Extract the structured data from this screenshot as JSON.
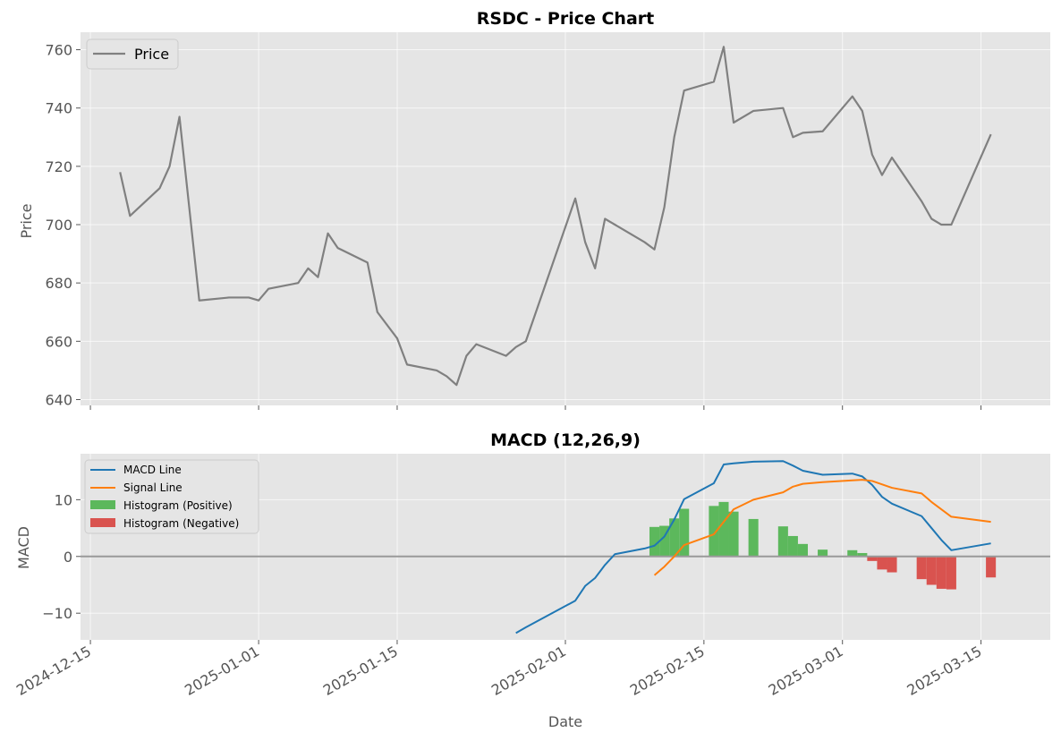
{
  "chart_data": [
    {
      "type": "line",
      "title": "RSDC - Price Chart",
      "xlabel": "",
      "ylabel": "Price",
      "ylim": [
        638,
        766
      ],
      "yticks": [
        640,
        660,
        680,
        700,
        720,
        740,
        760
      ],
      "grid": true,
      "legend_position": "top-left",
      "series": [
        {
          "name": "Price",
          "color": "#808080",
          "points": [
            [
              "2024-12-18",
              718
            ],
            [
              "2024-12-19",
              703
            ],
            [
              "2024-12-22",
              712.5
            ],
            [
              "2024-12-23",
              720
            ],
            [
              "2024-12-24",
              737
            ],
            [
              "2024-12-26",
              674
            ],
            [
              "2024-12-29",
              675
            ],
            [
              "2024-12-31",
              675
            ],
            [
              "2025-01-01",
              674
            ],
            [
              "2025-01-02",
              678
            ],
            [
              "2025-01-05",
              680
            ],
            [
              "2025-01-06",
              685
            ],
            [
              "2025-01-07",
              682
            ],
            [
              "2025-01-08",
              697
            ],
            [
              "2025-01-09",
              692
            ],
            [
              "2025-01-12",
              687
            ],
            [
              "2025-01-13",
              670
            ],
            [
              "2025-01-15",
              661
            ],
            [
              "2025-01-16",
              652
            ],
            [
              "2025-01-19",
              650
            ],
            [
              "2025-01-20",
              648
            ],
            [
              "2025-01-21",
              645
            ],
            [
              "2025-01-22",
              655
            ],
            [
              "2025-01-23",
              659
            ],
            [
              "2025-01-26",
              655
            ],
            [
              "2025-01-27",
              658
            ],
            [
              "2025-01-28",
              660
            ],
            [
              "2025-02-02",
              709
            ],
            [
              "2025-02-03",
              694
            ],
            [
              "2025-02-04",
              685
            ],
            [
              "2025-02-05",
              702
            ],
            [
              "2025-02-09",
              694
            ],
            [
              "2025-02-10",
              691.5
            ],
            [
              "2025-02-11",
              706
            ],
            [
              "2025-02-12",
              730
            ],
            [
              "2025-02-13",
              746
            ],
            [
              "2025-02-16",
              749
            ],
            [
              "2025-02-17",
              761
            ],
            [
              "2025-02-18",
              735
            ],
            [
              "2025-02-20",
              739
            ],
            [
              "2025-02-23",
              740
            ],
            [
              "2025-02-24",
              730
            ],
            [
              "2025-02-25",
              731.5
            ],
            [
              "2025-02-27",
              732
            ],
            [
              "2025-03-02",
              744
            ],
            [
              "2025-03-03",
              739
            ],
            [
              "2025-03-04",
              724
            ],
            [
              "2025-03-05",
              717
            ],
            [
              "2025-03-06",
              723
            ],
            [
              "2025-03-09",
              708
            ],
            [
              "2025-03-10",
              702
            ],
            [
              "2025-03-11",
              700
            ],
            [
              "2025-03-12",
              700
            ],
            [
              "2025-03-16",
              731
            ]
          ]
        }
      ]
    },
    {
      "type": "line",
      "title": "MACD (12,26,9)",
      "xlabel": "Date",
      "ylabel": "MACD",
      "ylim": [
        -14.7,
        18.1
      ],
      "yticks": [
        -10,
        0,
        10
      ],
      "ytick_labels": [
        "−10",
        "0",
        "10"
      ],
      "zero_line": true,
      "grid": true,
      "legend_position": "top-left",
      "xlim": [
        "2024-12-14",
        "2025-03-22"
      ],
      "xticks": [
        "2024-12-15",
        "2025-01-01",
        "2025-01-15",
        "2025-02-01",
        "2025-02-15",
        "2025-03-01",
        "2025-03-15"
      ],
      "series": [
        {
          "name": "MACD Line",
          "color": "#1f77b4",
          "points": [
            [
              "2025-01-27",
              -13.5
            ],
            [
              "2025-01-28",
              -12.5
            ],
            [
              "2025-02-02",
              -7.8
            ],
            [
              "2025-02-03",
              -5.2
            ],
            [
              "2025-02-04",
              -3.8
            ],
            [
              "2025-02-05",
              -1.5
            ],
            [
              "2025-02-06",
              0.4
            ],
            [
              "2025-02-09",
              1.4
            ],
            [
              "2025-02-10",
              1.9
            ],
            [
              "2025-02-11",
              3.5
            ],
            [
              "2025-02-12",
              6.5
            ],
            [
              "2025-02-13",
              10.1
            ],
            [
              "2025-02-16",
              12.9
            ],
            [
              "2025-02-17",
              16.2
            ],
            [
              "2025-02-18",
              16.4
            ],
            [
              "2025-02-20",
              16.7
            ],
            [
              "2025-02-23",
              16.8
            ],
            [
              "2025-02-24",
              16.0
            ],
            [
              "2025-02-25",
              15.1
            ],
            [
              "2025-02-27",
              14.4
            ],
            [
              "2025-03-02",
              14.6
            ],
            [
              "2025-03-03",
              14.1
            ],
            [
              "2025-03-04",
              12.6
            ],
            [
              "2025-03-05",
              10.5
            ],
            [
              "2025-03-06",
              9.3
            ],
            [
              "2025-03-09",
              7.1
            ],
            [
              "2025-03-10",
              5.0
            ],
            [
              "2025-03-11",
              2.9
            ],
            [
              "2025-03-12",
              1.1
            ],
            [
              "2025-03-16",
              2.3
            ]
          ]
        },
        {
          "name": "Signal Line",
          "color": "#ff7f0e",
          "points": [
            [
              "2025-02-10",
              -3.3
            ],
            [
              "2025-02-11",
              -1.8
            ],
            [
              "2025-02-12",
              0.0
            ],
            [
              "2025-02-13",
              2.0
            ],
            [
              "2025-02-16",
              3.9
            ],
            [
              "2025-02-17",
              6.1
            ],
            [
              "2025-02-18",
              8.3
            ],
            [
              "2025-02-20",
              10.0
            ],
            [
              "2025-02-23",
              11.3
            ],
            [
              "2025-02-24",
              12.3
            ],
            [
              "2025-02-25",
              12.8
            ],
            [
              "2025-02-27",
              13.1
            ],
            [
              "2025-03-02",
              13.4
            ],
            [
              "2025-03-03",
              13.5
            ],
            [
              "2025-03-04",
              13.3
            ],
            [
              "2025-03-06",
              12.1
            ],
            [
              "2025-03-09",
              11.1
            ],
            [
              "2025-03-10",
              9.6
            ],
            [
              "2025-03-12",
              7.0
            ],
            [
              "2025-03-16",
              6.1
            ]
          ]
        }
      ],
      "histogram": {
        "positive_name": "Histogram (Positive)",
        "negative_name": "Histogram (Negative)",
        "positive_color": "#5cb85c",
        "negative_color": "#d9534f",
        "bars": [
          [
            "2025-02-10",
            5.2
          ],
          [
            "2025-02-11",
            5.4
          ],
          [
            "2025-02-12",
            6.7
          ],
          [
            "2025-02-13",
            8.4
          ],
          [
            "2025-02-16",
            8.9
          ],
          [
            "2025-02-17",
            9.6
          ],
          [
            "2025-02-18",
            7.9
          ],
          [
            "2025-02-20",
            6.6
          ],
          [
            "2025-02-23",
            5.3
          ],
          [
            "2025-02-24",
            3.6
          ],
          [
            "2025-02-25",
            2.2
          ],
          [
            "2025-02-27",
            1.2
          ],
          [
            "2025-03-02",
            1.1
          ],
          [
            "2025-03-03",
            0.6
          ],
          [
            "2025-03-04",
            -0.8
          ],
          [
            "2025-03-05",
            -2.3
          ],
          [
            "2025-03-06",
            -2.8
          ],
          [
            "2025-03-09",
            -4.0
          ],
          [
            "2025-03-10",
            -5.0
          ],
          [
            "2025-03-11",
            -5.7
          ],
          [
            "2025-03-12",
            -5.8
          ],
          [
            "2025-03-16",
            -3.7
          ]
        ]
      }
    }
  ]
}
